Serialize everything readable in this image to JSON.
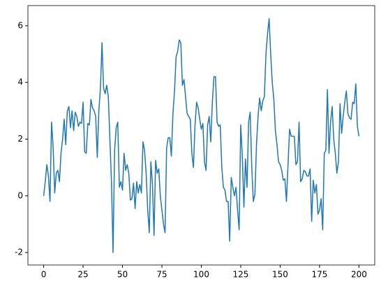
{
  "chart_data": {
    "type": "line",
    "x": [
      0,
      1,
      2,
      3,
      4,
      5,
      6,
      7,
      8,
      9,
      10,
      11,
      12,
      13,
      14,
      15,
      16,
      17,
      18,
      19,
      20,
      21,
      22,
      23,
      24,
      25,
      26,
      27,
      28,
      29,
      30,
      31,
      32,
      33,
      34,
      35,
      36,
      37,
      38,
      39,
      40,
      41,
      42,
      43,
      44,
      45,
      46,
      47,
      48,
      49,
      50,
      51,
      52,
      53,
      54,
      55,
      56,
      57,
      58,
      59,
      60,
      61,
      62,
      63,
      64,
      65,
      66,
      67,
      68,
      69,
      70,
      71,
      72,
      73,
      74,
      75,
      76,
      77,
      78,
      79,
      80,
      81,
      82,
      83,
      84,
      85,
      86,
      87,
      88,
      89,
      90,
      91,
      92,
      93,
      94,
      95,
      96,
      97,
      98,
      99,
      100,
      101,
      102,
      103,
      104,
      105,
      106,
      107,
      108,
      109,
      110,
      111,
      112,
      113,
      114,
      115,
      116,
      117,
      118,
      119,
      120,
      121,
      122,
      123,
      124,
      125,
      126,
      127,
      128,
      129,
      130,
      131,
      132,
      133,
      134,
      135,
      136,
      137,
      138,
      139,
      140,
      141,
      142,
      143,
      144,
      145,
      146,
      147,
      148,
      149,
      150,
      151,
      152,
      153,
      154,
      155,
      156,
      157,
      158,
      159,
      160,
      161,
      162,
      163,
      164,
      165,
      166,
      167,
      168,
      169,
      170,
      171,
      172,
      173,
      174,
      175,
      176,
      177,
      178,
      179,
      180,
      181,
      182,
      183,
      184,
      185,
      186,
      187,
      188,
      189,
      190,
      191,
      192,
      193,
      194,
      195,
      196,
      197,
      198,
      199,
      200
    ],
    "series": [
      {
        "color": "#1f77b4",
        "values": [
          0,
          0.5,
          1.1,
          0.7,
          -0.2,
          2.6,
          1.7,
          0.1,
          0.8,
          0.9,
          0.5,
          1.5,
          2.0,
          2.7,
          1.8,
          3.0,
          3.15,
          2.4,
          3.0,
          2.3,
          2.95,
          2.8,
          2.45,
          2.6,
          2.55,
          3.3,
          1.55,
          1.5,
          2.55,
          2.5,
          3.4,
          3.1,
          3.0,
          2.8,
          1.35,
          3.0,
          3.8,
          5.4,
          3.8,
          3.6,
          3.9,
          3.5,
          2.0,
          0.5,
          -2.0,
          1.6,
          2.4,
          2.6,
          0.3,
          0.5,
          0.2,
          1.5,
          0.9,
          1.1,
          0.8,
          -0.15,
          -0.1,
          0.45,
          -0.45,
          0.5,
          0.1,
          0.4,
          0.1,
          1.9,
          1.6,
          0.8,
          -0.5,
          -1.3,
          1.2,
          0.4,
          -1.4,
          1.25,
          0.8,
          0.95,
          0.0,
          -0.5,
          -1.0,
          -1.3,
          1.7,
          2.05,
          2.05,
          1.4,
          2.9,
          3.7,
          4.9,
          5.1,
          5.5,
          5.4,
          3.9,
          4.1,
          3.5,
          2.9,
          2.8,
          2.7,
          1.5,
          1.0,
          2.5,
          3.3,
          3.1,
          2.7,
          2.35,
          2.55,
          1.2,
          0.9,
          2.5,
          2.8,
          1.9,
          3.3,
          4.2,
          4.2,
          2.6,
          2.45,
          2.5,
          1.0,
          0.3,
          0.2,
          -0.2,
          -0.2,
          -1.6,
          0.65,
          0.3,
          0.0,
          0.3,
          -0.5,
          -1.2,
          2.5,
          1.4,
          -0.4,
          1.3,
          0.3,
          2.6,
          2.95,
          1.0,
          -0.2,
          0.05,
          1.8,
          2.8,
          3.45,
          3.0,
          3.35,
          3.5,
          5.0,
          5.7,
          6.25,
          5.0,
          4.0,
          3.4,
          2.3,
          1.8,
          1.2,
          1.1,
          0.9,
          0.55,
          0.6,
          -0.2,
          1.1,
          2.35,
          2.1,
          2.1,
          2.1,
          1.1,
          1.2,
          2.6,
          0.5,
          0.6,
          0.9,
          0.85,
          0.7,
          0.7,
          0.95,
          -0.9,
          0.55,
          0.1,
          0.4,
          -0.65,
          -0.5,
          -0.1,
          -1.2,
          1.5,
          1.6,
          3.75,
          1.5,
          2.6,
          3.15,
          2.0,
          1.5,
          0.8,
          1.2,
          3.25,
          2.2,
          2.8,
          3.3,
          3.7,
          2.9,
          2.75,
          2.7,
          3.3,
          3.25,
          3.95,
          2.45,
          2.1
        ]
      }
    ],
    "xlim": [
      -10,
      210
    ],
    "xticks": [
      0,
      25,
      50,
      75,
      100,
      125,
      150,
      175,
      200
    ],
    "ylim": [
      -2.44,
      6.71
    ],
    "yticks": [
      -2,
      0,
      2,
      4,
      6
    ]
  }
}
